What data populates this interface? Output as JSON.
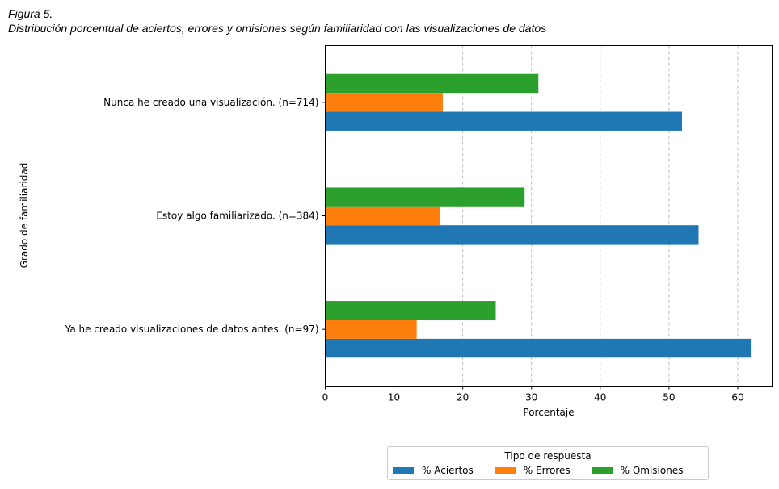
{
  "figure": {
    "label": "Figura 5.",
    "caption": "Distribución porcentual de aciertos, errores y omisiones según familiaridad con las visualizaciones de datos"
  },
  "chart_data": {
    "type": "bar",
    "orientation": "horizontal",
    "categories": [
      "Nunca he creado una visualización. (n=714)",
      "Estoy algo familiarizado. (n=384)",
      "Ya he creado visualizaciones de datos antes. (n=97)"
    ],
    "series": [
      {
        "name": "% Aciertos",
        "color": "#1f77b4",
        "values": [
          51.9,
          54.3,
          61.9
        ]
      },
      {
        "name": "% Errores",
        "color": "#ff7f0e",
        "values": [
          17.1,
          16.7,
          13.3
        ]
      },
      {
        "name": "% Omisiones",
        "color": "#2ca02c",
        "values": [
          31.0,
          29.0,
          24.8
        ]
      }
    ],
    "xlabel": "Porcentaje",
    "ylabel": "Grado de familiaridad",
    "xlim": [
      0,
      65
    ],
    "xticks": [
      0,
      10,
      20,
      30,
      40,
      50,
      60
    ],
    "grid": "x dashed",
    "legend": {
      "title": "Tipo de respuesta",
      "placement": "bottom-center"
    }
  }
}
